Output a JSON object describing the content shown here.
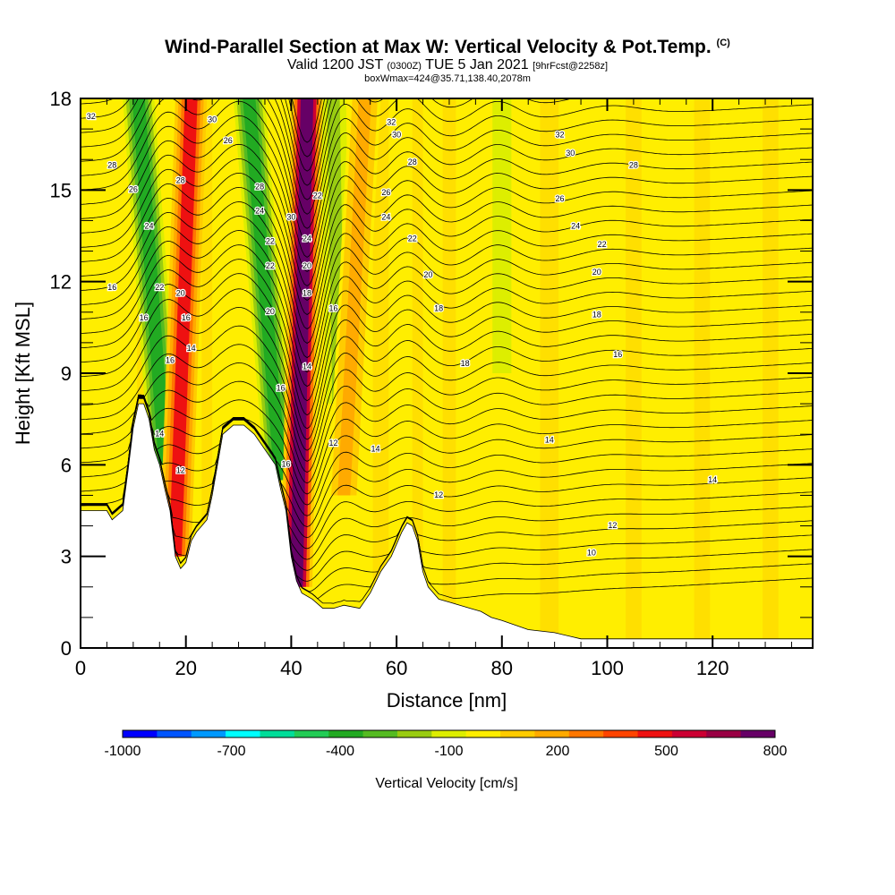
{
  "header": {
    "title": "Wind-Parallel Section at Max W: Vertical Velocity & Pot.Temp.",
    "copyright": "(C)",
    "valid_prefix": "Valid 1200 JST",
    "valid_utc": "(0300Z)",
    "valid_date": "TUE 5 Jan 2021",
    "forecast_info": "[9hrFcst@2258z]",
    "box_info": "boxWmax=424@35.71,138.40,2078m"
  },
  "chart_data": {
    "type": "heatmap",
    "title": "Wind-Parallel Section at Max W: Vertical Velocity & Pot.Temp.",
    "xlabel": "Distance [nm]",
    "ylabel": "Height [Kft MSL]",
    "xlim": [
      0,
      139
    ],
    "ylim": [
      0,
      18
    ],
    "x_ticks": [
      "0",
      "20",
      "40",
      "60",
      "80",
      "100",
      "120"
    ],
    "y_ticks": [
      "0",
      "3",
      "6",
      "9",
      "12",
      "15",
      "18"
    ],
    "colorbar": {
      "label": "Vertical Velocity [cm/s]",
      "tick_labels": [
        "-1000",
        "-700",
        "-400",
        "-100",
        "200",
        "500",
        "800"
      ],
      "colors": [
        "#0000ff",
        "#0055ff",
        "#0099ff",
        "#00ffff",
        "#00dd99",
        "#22cc55",
        "#22aa22",
        "#55bb22",
        "#99cc11",
        "#ddee00",
        "#ffee00",
        "#ffcc00",
        "#ffaa00",
        "#ff7700",
        "#ff4400",
        "#ee1111",
        "#cc0033",
        "#990044",
        "#660066"
      ]
    },
    "terrain": [
      [
        0,
        4.5
      ],
      [
        5,
        4.5
      ],
      [
        6,
        4.2
      ],
      [
        8,
        4.5
      ],
      [
        9,
        5.8
      ],
      [
        10,
        7.2
      ],
      [
        11,
        8
      ],
      [
        12,
        8
      ],
      [
        13,
        7.5
      ],
      [
        14,
        6.5
      ],
      [
        15,
        6
      ],
      [
        16,
        5.2
      ],
      [
        17,
        4.5
      ],
      [
        18,
        3
      ],
      [
        19,
        2.6
      ],
      [
        20,
        2.8
      ],
      [
        21,
        3.5
      ],
      [
        22,
        3.8
      ],
      [
        23,
        4
      ],
      [
        24,
        4.2
      ],
      [
        25,
        5
      ],
      [
        26,
        6
      ],
      [
        27,
        7
      ],
      [
        29,
        7.3
      ],
      [
        31,
        7.3
      ],
      [
        33,
        7
      ],
      [
        35,
        6.5
      ],
      [
        37,
        6
      ],
      [
        38,
        5.2
      ],
      [
        39,
        4.5
      ],
      [
        40,
        3
      ],
      [
        41,
        2.2
      ],
      [
        42,
        1.8
      ],
      [
        44,
        1.6
      ],
      [
        46,
        1.3
      ],
      [
        48,
        1.3
      ],
      [
        50,
        1.4
      ],
      [
        53,
        1.3
      ],
      [
        55,
        1.8
      ],
      [
        57,
        2.5
      ],
      [
        59,
        3
      ],
      [
        61,
        3.8
      ],
      [
        62,
        4.1
      ],
      [
        63,
        4
      ],
      [
        64,
        3.5
      ],
      [
        65,
        2.5
      ],
      [
        66,
        2
      ],
      [
        68,
        1.6
      ],
      [
        70,
        1.5
      ],
      [
        72,
        1.4
      ],
      [
        74,
        1.3
      ],
      [
        76,
        1.2
      ],
      [
        78,
        1.0
      ],
      [
        80,
        0.9
      ],
      [
        85,
        0.6
      ],
      [
        90,
        0.5
      ],
      [
        95,
        0.3
      ],
      [
        100,
        0.3
      ],
      [
        110,
        0.3
      ],
      [
        120,
        0.3
      ],
      [
        130,
        0.3
      ],
      [
        139,
        0.3
      ]
    ],
    "updraft_bands": [
      {
        "x_bottom": 18,
        "x_top": 21,
        "w": 500,
        "y_bottom": 3
      },
      {
        "x_bottom": 41,
        "x_top": 43,
        "w": 800,
        "y_bottom": 2
      },
      {
        "x_bottom": 50,
        "x_top": 54,
        "w": 200,
        "y_bottom": 5
      }
    ],
    "downdraft_bands": [
      {
        "x_bottom": 16,
        "x_top": 11,
        "w": -400,
        "y_bottom": 6
      },
      {
        "x_bottom": 38,
        "x_top": 32,
        "w": -400,
        "y_bottom": 5.5
      },
      {
        "x_bottom": 49,
        "x_top": 48,
        "w": -200,
        "y_bottom": 8
      },
      {
        "x_bottom": 80,
        "x_top": 80,
        "w": -100,
        "y_bottom": 9
      }
    ],
    "theta_levels": [
      10,
      12,
      14,
      16,
      18,
      20,
      22,
      24,
      26,
      28,
      30,
      32
    ],
    "contour_labels": [
      {
        "x": 2,
        "y": 17.4,
        "text": "32"
      },
      {
        "x": 6,
        "y": 15.8,
        "text": "28"
      },
      {
        "x": 10,
        "y": 15,
        "text": "26"
      },
      {
        "x": 13,
        "y": 13.8,
        "text": "24"
      },
      {
        "x": 15,
        "y": 11.8,
        "text": "22"
      },
      {
        "x": 6,
        "y": 11.8,
        "text": "16"
      },
      {
        "x": 12,
        "y": 10.8,
        "text": "16"
      },
      {
        "x": 17,
        "y": 9.4,
        "text": "16"
      },
      {
        "x": 15,
        "y": 7,
        "text": "14"
      },
      {
        "x": 19,
        "y": 5.8,
        "text": "12"
      },
      {
        "x": 19,
        "y": 11.6,
        "text": "20"
      },
      {
        "x": 20,
        "y": 10.8,
        "text": "16"
      },
      {
        "x": 21,
        "y": 9.8,
        "text": "14"
      },
      {
        "x": 19,
        "y": 15.3,
        "text": "28"
      },
      {
        "x": 25,
        "y": 17.3,
        "text": "30"
      },
      {
        "x": 28,
        "y": 16.6,
        "text": "26"
      },
      {
        "x": 34,
        "y": 15.1,
        "text": "28"
      },
      {
        "x": 34,
        "y": 14.3,
        "text": "24"
      },
      {
        "x": 36,
        "y": 13.3,
        "text": "22"
      },
      {
        "x": 36,
        "y": 12.5,
        "text": "22"
      },
      {
        "x": 36,
        "y": 11,
        "text": "20"
      },
      {
        "x": 38,
        "y": 8.5,
        "text": "16"
      },
      {
        "x": 39,
        "y": 6,
        "text": "16"
      },
      {
        "x": 40,
        "y": 14.1,
        "text": "30"
      },
      {
        "x": 45,
        "y": 14.8,
        "text": "22"
      },
      {
        "x": 43,
        "y": 13.4,
        "text": "24"
      },
      {
        "x": 43,
        "y": 12.5,
        "text": "20"
      },
      {
        "x": 43,
        "y": 11.6,
        "text": "18"
      },
      {
        "x": 48,
        "y": 11.1,
        "text": "16"
      },
      {
        "x": 43,
        "y": 9.2,
        "text": "14"
      },
      {
        "x": 48,
        "y": 6.7,
        "text": "12"
      },
      {
        "x": 59,
        "y": 17.2,
        "text": "32"
      },
      {
        "x": 60,
        "y": 16.8,
        "text": "30"
      },
      {
        "x": 63,
        "y": 15.9,
        "text": "28"
      },
      {
        "x": 58,
        "y": 14.9,
        "text": "26"
      },
      {
        "x": 58,
        "y": 14.1,
        "text": "24"
      },
      {
        "x": 63,
        "y": 13.4,
        "text": "22"
      },
      {
        "x": 66,
        "y": 12.2,
        "text": "20"
      },
      {
        "x": 68,
        "y": 11.1,
        "text": "18"
      },
      {
        "x": 73,
        "y": 9.3,
        "text": "18"
      },
      {
        "x": 56,
        "y": 6.5,
        "text": "14"
      },
      {
        "x": 68,
        "y": 5,
        "text": "12"
      },
      {
        "x": 91,
        "y": 16.8,
        "text": "32"
      },
      {
        "x": 93,
        "y": 16.2,
        "text": "30"
      },
      {
        "x": 105,
        "y": 15.8,
        "text": "28"
      },
      {
        "x": 91,
        "y": 14.7,
        "text": "26"
      },
      {
        "x": 94,
        "y": 13.8,
        "text": "24"
      },
      {
        "x": 99,
        "y": 13.2,
        "text": "22"
      },
      {
        "x": 98,
        "y": 12.3,
        "text": "20"
      },
      {
        "x": 98,
        "y": 10.9,
        "text": "18"
      },
      {
        "x": 102,
        "y": 9.6,
        "text": "16"
      },
      {
        "x": 89,
        "y": 6.8,
        "text": "14"
      },
      {
        "x": 120,
        "y": 5.5,
        "text": "14"
      },
      {
        "x": 101,
        "y": 4,
        "text": "12"
      },
      {
        "x": 97,
        "y": 3.1,
        "text": "10"
      }
    ]
  }
}
